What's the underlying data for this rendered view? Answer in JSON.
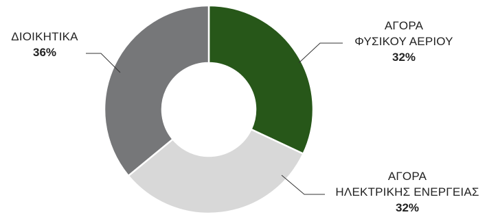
{
  "chart_data": {
    "type": "donut",
    "categories": [
      "ΑΓΟΡΑ ΦΥΣΙΚΟΥ ΑΕΡΙΟΥ",
      "ΑΓΟΡΑ ΗΛΕΚΤΡΙΚΗΣ ΕΝΕΡΓΕΙΑΣ",
      "ΔΙΟΙΚΗΤΙΚΑ"
    ],
    "values": [
      32,
      32,
      36
    ],
    "value_labels": [
      "32%",
      "32%",
      "36%"
    ],
    "colors": [
      "#275719",
      "#d8d8d8",
      "#767779"
    ],
    "labels": [
      {
        "lines": [
          "ΑΓΟΡΑ",
          "ΦΥΣΙΚΟΥ ΑΕΡΙΟΥ"
        ],
        "pct": "32%"
      },
      {
        "lines": [
          "ΑΓΟΡΑ",
          "ΗΛΕΚΤΡΙΚΗΣ ΕΝΕΡΓΕΙΑΣ"
        ],
        "pct": "32%"
      },
      {
        "lines": [
          "ΔΙΟΙΚΗΤΙΚΑ"
        ],
        "pct": "36%"
      }
    ],
    "title": "",
    "legend": "none"
  }
}
